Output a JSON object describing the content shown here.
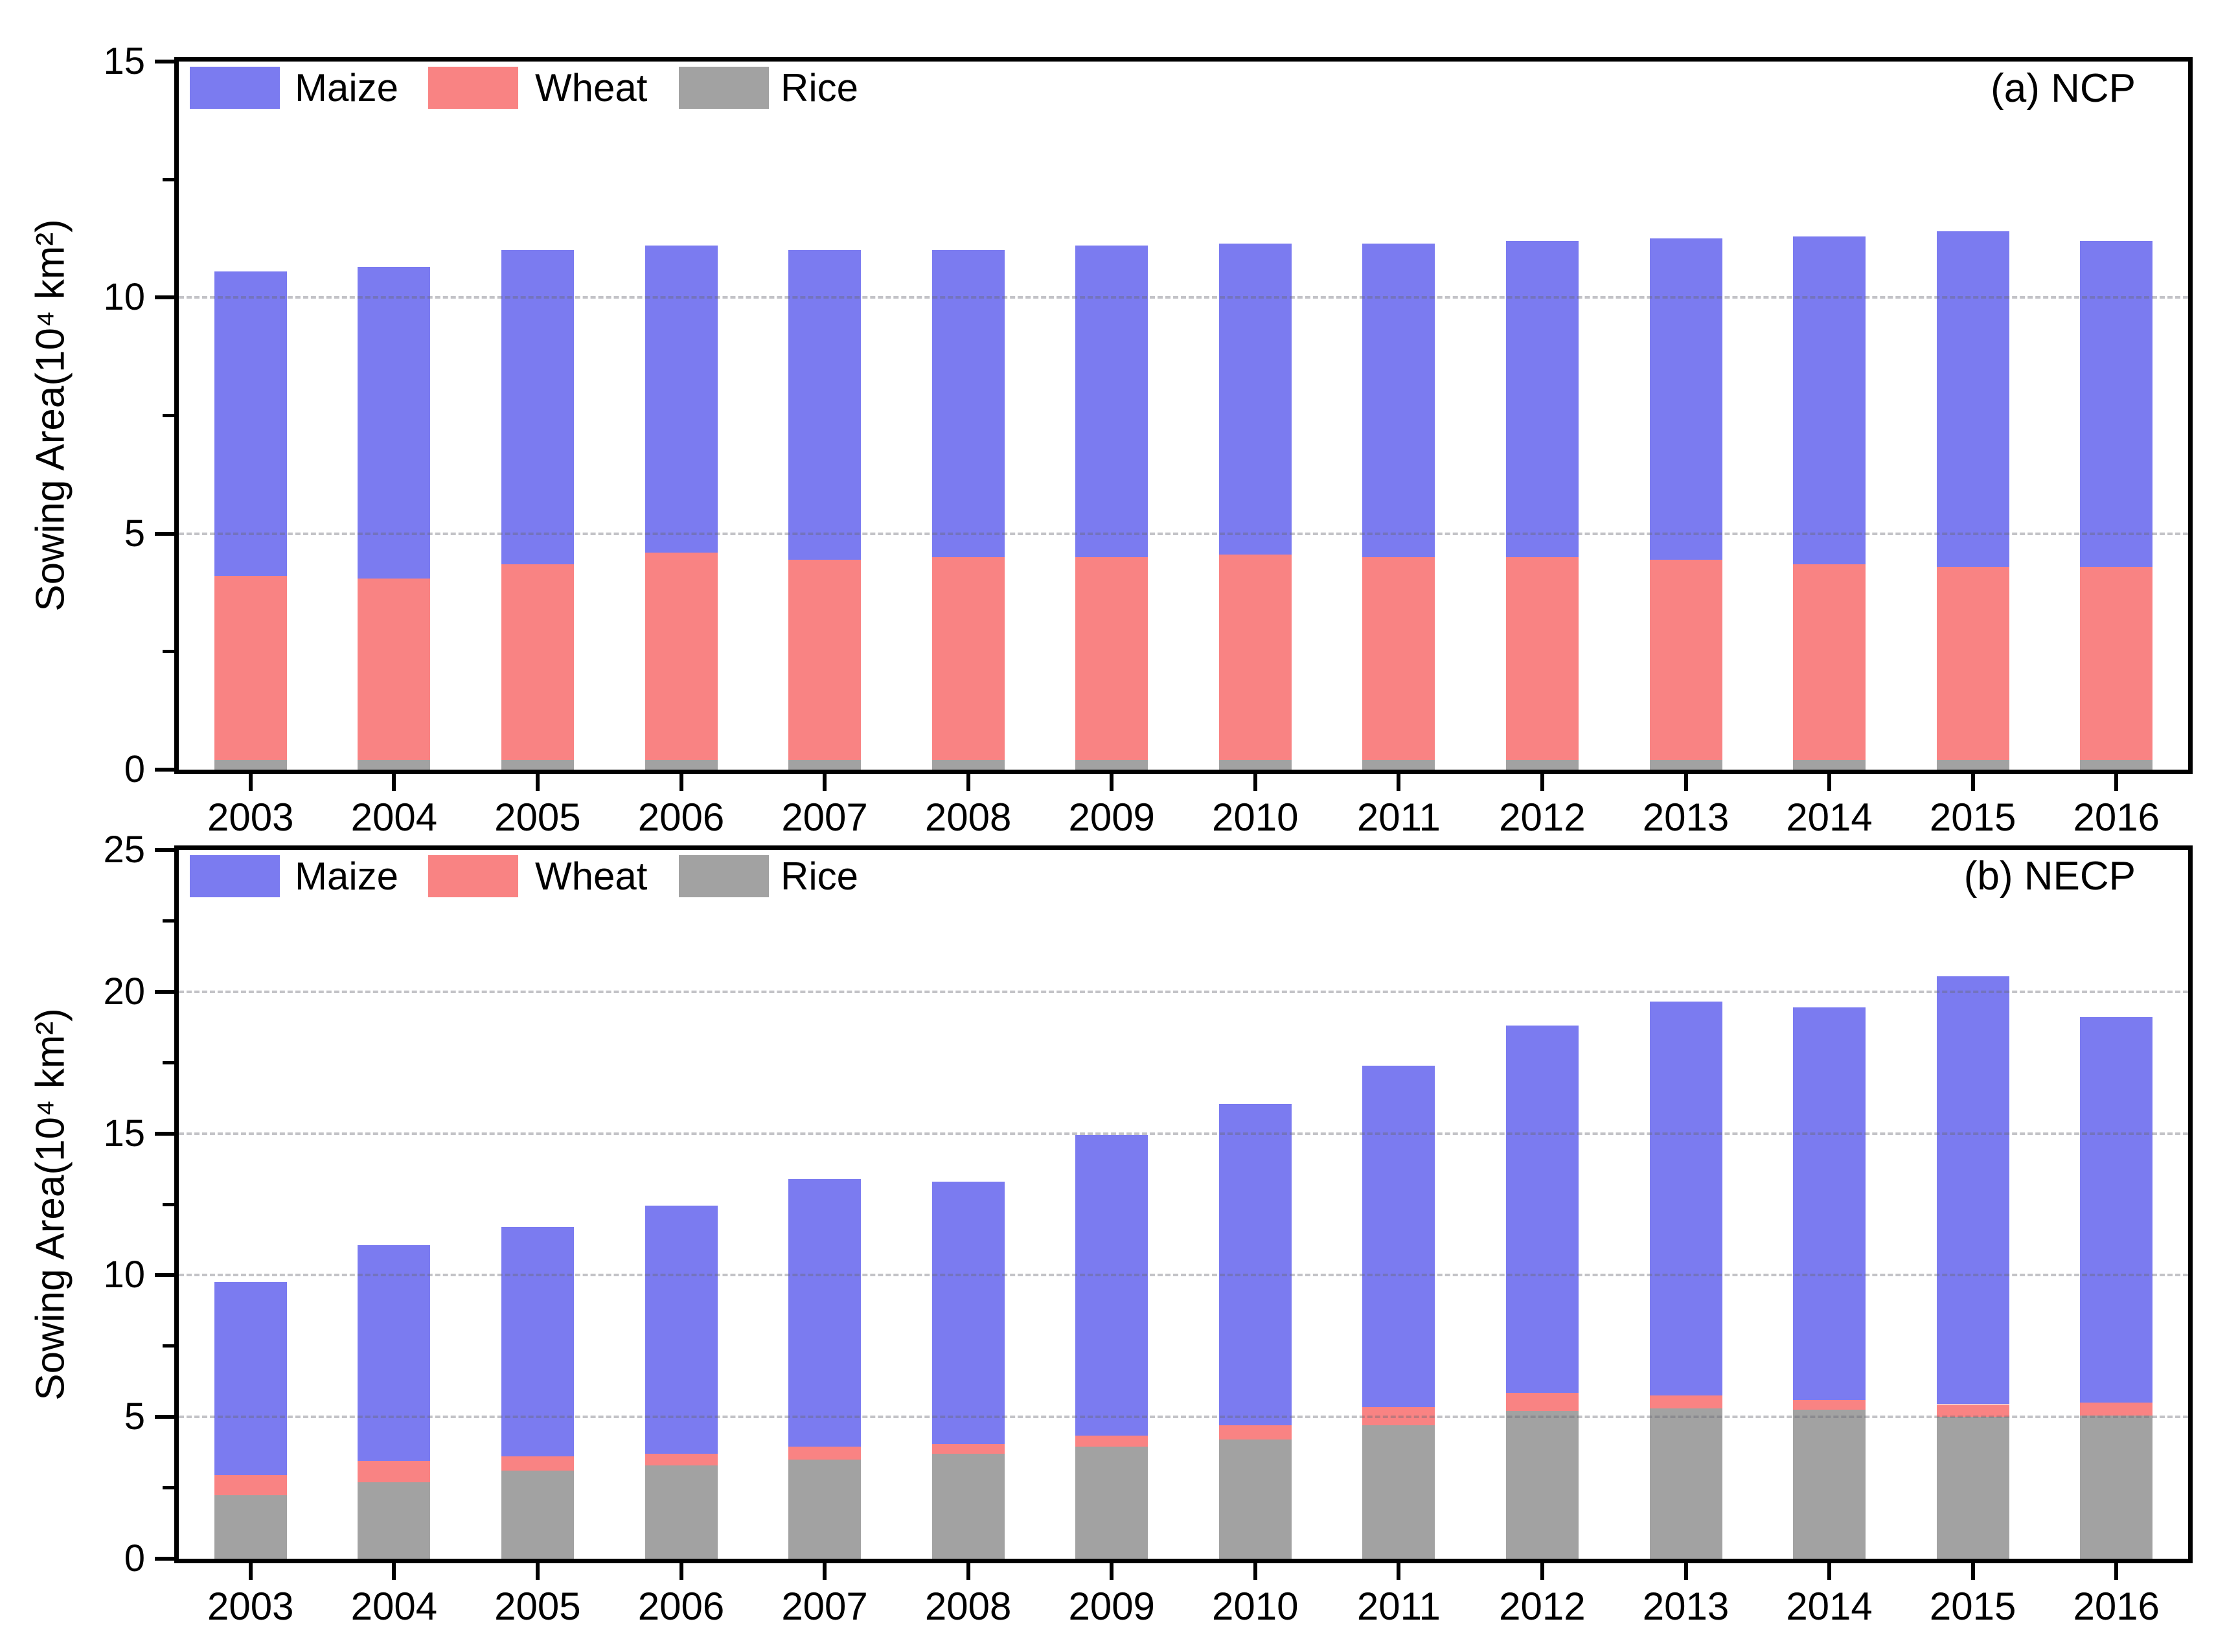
{
  "style": {
    "background": "#ffffff",
    "axis_color": "#000000",
    "grid_color": "rgba(105,105,115,0.40)",
    "text_color": "#000000"
  },
  "chart_data": [
    {
      "id": "a",
      "type": "bar",
      "stacked": true,
      "annotation": "(a) NCP",
      "ylabel": "Sowing Area(10⁴ km²)",
      "xlabel": "",
      "ylim": [
        0,
        15
      ],
      "yticks": [
        0,
        5,
        10,
        15
      ],
      "minor_yticks": [
        2.5,
        7.5,
        12.5
      ],
      "gridlines": [
        5,
        10
      ],
      "grid_style": "dashed",
      "legend_position": "top-left",
      "legend": [
        "Maize",
        "Wheat",
        "Rice"
      ],
      "stack_order_bottom_to_top": [
        "Rice",
        "Wheat",
        "Maize"
      ],
      "categories": [
        2003,
        2004,
        2005,
        2006,
        2007,
        2008,
        2009,
        2010,
        2011,
        2012,
        2013,
        2014,
        2015,
        2016
      ],
      "series": [
        {
          "name": "Maize",
          "color": "#7b7bf0",
          "values": [
            6.45,
            6.6,
            6.65,
            6.5,
            6.55,
            6.5,
            6.6,
            6.6,
            6.65,
            6.7,
            6.8,
            6.95,
            7.1,
            6.9
          ]
        },
        {
          "name": "Wheat",
          "color": "#f98383",
          "values": [
            3.9,
            3.85,
            4.15,
            4.4,
            4.25,
            4.3,
            4.3,
            4.35,
            4.3,
            4.3,
            4.25,
            4.15,
            4.1,
            4.1
          ]
        },
        {
          "name": "Rice",
          "color": "#a2a2a2",
          "values": [
            0.2,
            0.2,
            0.2,
            0.2,
            0.2,
            0.2,
            0.2,
            0.2,
            0.2,
            0.2,
            0.2,
            0.2,
            0.2,
            0.2
          ]
        }
      ],
      "totals": [
        10.55,
        10.65,
        11.0,
        11.1,
        11.0,
        11.0,
        11.1,
        11.15,
        11.15,
        11.2,
        11.25,
        11.3,
        11.4,
        11.2
      ]
    },
    {
      "id": "b",
      "type": "bar",
      "stacked": true,
      "annotation": "(b) NECP",
      "ylabel": "Sowing Area(10⁴ km²)",
      "xlabel": "",
      "ylim": [
        0,
        25
      ],
      "yticks": [
        0,
        5,
        10,
        15,
        20,
        25
      ],
      "minor_yticks": [
        2.5,
        7.5,
        12.5,
        17.5,
        22.5
      ],
      "gridlines": [
        5,
        10,
        15,
        20
      ],
      "grid_style": "dashed",
      "legend_position": "top-left",
      "legend": [
        "Maize",
        "Wheat",
        "Rice"
      ],
      "stack_order_bottom_to_top": [
        "Rice",
        "Wheat",
        "Maize"
      ],
      "categories": [
        2003,
        2004,
        2005,
        2006,
        2007,
        2008,
        2009,
        2010,
        2011,
        2012,
        2013,
        2014,
        2015,
        2016
      ],
      "series": [
        {
          "name": "Maize",
          "color": "#7b7bf0",
          "values": [
            6.8,
            7.6,
            8.1,
            8.75,
            9.45,
            9.25,
            10.6,
            11.35,
            12.05,
            12.95,
            13.9,
            13.85,
            15.1,
            13.6
          ]
        },
        {
          "name": "Wheat",
          "color": "#f98383",
          "values": [
            0.7,
            0.75,
            0.5,
            0.4,
            0.45,
            0.35,
            0.4,
            0.5,
            0.65,
            0.65,
            0.45,
            0.35,
            0.45,
            0.45
          ]
        },
        {
          "name": "Rice",
          "color": "#a2a2a2",
          "values": [
            2.25,
            2.7,
            3.1,
            3.3,
            3.5,
            3.7,
            3.95,
            4.2,
            4.7,
            5.2,
            5.3,
            5.25,
            5.0,
            5.05
          ]
        }
      ],
      "totals": [
        9.75,
        11.05,
        11.7,
        12.45,
        13.4,
        13.3,
        14.95,
        16.05,
        17.4,
        18.8,
        19.65,
        19.45,
        20.55,
        19.1
      ]
    }
  ]
}
